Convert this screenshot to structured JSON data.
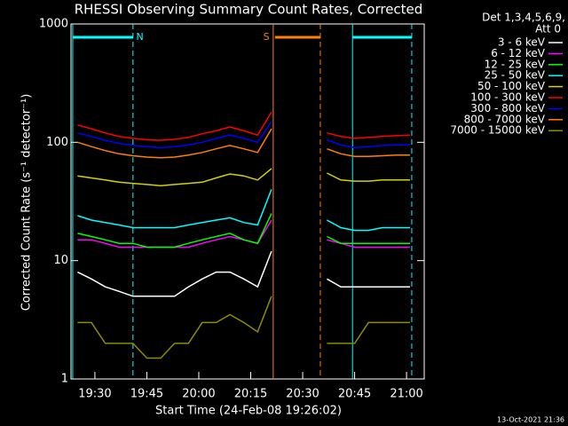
{
  "chart_data": {
    "type": "line",
    "title": "RHESSI Observing Summary Count Rates, Corrected",
    "x_label": "Start Time (24-Feb-08 19:26:02)",
    "y_label": "Corrected Count Rate (s⁻¹ detector⁻¹)",
    "legend_title": [
      "Det 1,3,4,5,6,9,",
      "Att 0"
    ],
    "footer": "13-Oct-2021 21:36",
    "log_y": true,
    "xlim": [
      23.1,
      125.1
    ],
    "ylim": [
      1,
      1000
    ],
    "xticks": [
      {
        "value": 30,
        "label": "19:30"
      },
      {
        "value": 45,
        "label": "19:45"
      },
      {
        "value": 60,
        "label": "20:00"
      },
      {
        "value": 75,
        "label": "20:15"
      },
      {
        "value": 90,
        "label": "20:30"
      },
      {
        "value": 105,
        "label": "20:45"
      },
      {
        "value": 120,
        "label": "21:00"
      }
    ],
    "yticks": [
      1,
      10,
      100,
      1000
    ],
    "x": [
      25,
      29,
      33,
      37,
      41,
      45,
      49,
      53,
      57,
      61,
      65,
      69,
      73,
      77,
      81,
      89,
      97,
      101,
      105,
      109,
      113,
      117,
      121
    ],
    "series": [
      {
        "name": "3 - 6 keV",
        "color": "#ffffff",
        "values": [
          8,
          7,
          6,
          5.5,
          5,
          5,
          5,
          5,
          6,
          7,
          8,
          8,
          7,
          6,
          12,
          null,
          7,
          6,
          6,
          6,
          6,
          6,
          6
        ]
      },
      {
        "name": "6 - 12 keV",
        "color": "#ff00ff",
        "values": [
          15,
          15,
          14,
          13,
          13,
          13,
          13,
          13,
          13,
          14,
          15,
          16,
          15,
          14,
          22,
          null,
          15,
          14,
          13,
          13,
          13,
          13,
          13
        ]
      },
      {
        "name": "12 - 25 keV",
        "color": "#00ff00",
        "values": [
          17,
          16,
          15,
          14,
          14,
          13,
          13,
          13,
          14,
          15,
          16,
          17,
          15,
          14,
          25,
          null,
          16,
          14,
          14,
          14,
          14,
          14,
          14
        ]
      },
      {
        "name": "25 - 50 keV",
        "color": "#00ffff",
        "values": [
          24,
          22,
          21,
          20,
          19,
          19,
          19,
          19,
          20,
          21,
          22,
          23,
          21,
          20,
          40,
          null,
          22,
          19,
          18,
          18,
          19,
          19,
          19
        ]
      },
      {
        "name": "50 - 100 keV",
        "color": "#d2d200",
        "values": [
          52,
          50,
          48,
          46,
          45,
          44,
          43,
          44,
          45,
          46,
          50,
          54,
          52,
          48,
          60,
          null,
          55,
          48,
          47,
          47,
          48,
          48,
          48
        ]
      },
      {
        "name": "100 - 300 keV",
        "color": "#ff0000",
        "values": [
          140,
          130,
          120,
          112,
          108,
          105,
          104,
          106,
          110,
          118,
          125,
          135,
          125,
          115,
          180,
          null,
          120,
          112,
          108,
          110,
          112,
          114,
          115
        ]
      },
      {
        "name": "300 - 800 keV",
        "color": "#0000ff",
        "values": [
          120,
          112,
          104,
          98,
          94,
          92,
          90,
          92,
          95,
          100,
          108,
          115,
          108,
          100,
          150,
          null,
          105,
          95,
          90,
          92,
          94,
          95,
          95
        ]
      },
      {
        "name": "800 - 7000 keV",
        "color": "#ff8000",
        "values": [
          100,
          92,
          85,
          80,
          77,
          75,
          74,
          75,
          78,
          82,
          88,
          94,
          88,
          82,
          130,
          null,
          88,
          80,
          76,
          76,
          77,
          78,
          78
        ]
      },
      {
        "name": "7000 - 15000 keV",
        "color": "#8c8c00",
        "values": [
          3,
          3,
          2,
          2,
          2,
          1.5,
          1.5,
          2,
          2,
          3,
          3,
          3.5,
          3,
          2.5,
          5,
          null,
          2,
          2,
          2,
          3,
          3,
          3,
          3
        ]
      }
    ],
    "markers": [
      {
        "x": 23.6,
        "color": "#00ffff",
        "style": "solid"
      },
      {
        "x": 41.0,
        "color": "#00ffff",
        "style": "dashed"
      },
      {
        "x": 81.5,
        "color": "#ff8000",
        "style": "solid"
      },
      {
        "x": 95.1,
        "color": "#ff8000",
        "style": "dashed"
      },
      {
        "x": 104.4,
        "color": "#00ffff",
        "style": "solid"
      },
      {
        "x": 121.5,
        "color": "#00ffff",
        "style": "dashed"
      }
    ],
    "bars": [
      {
        "x": [
          23.6,
          41.0
        ],
        "color": "#00ffff"
      },
      {
        "x": [
          82.0,
          95.1
        ],
        "color": "#ff8000"
      },
      {
        "x": [
          104.4,
          121.5
        ],
        "color": "#00ffff"
      }
    ],
    "annotations": [
      {
        "text": "N",
        "x": 43.0,
        "color": "#00ffff"
      },
      {
        "text": "S",
        "x": 79.5,
        "color": "#ff8000"
      }
    ]
  }
}
